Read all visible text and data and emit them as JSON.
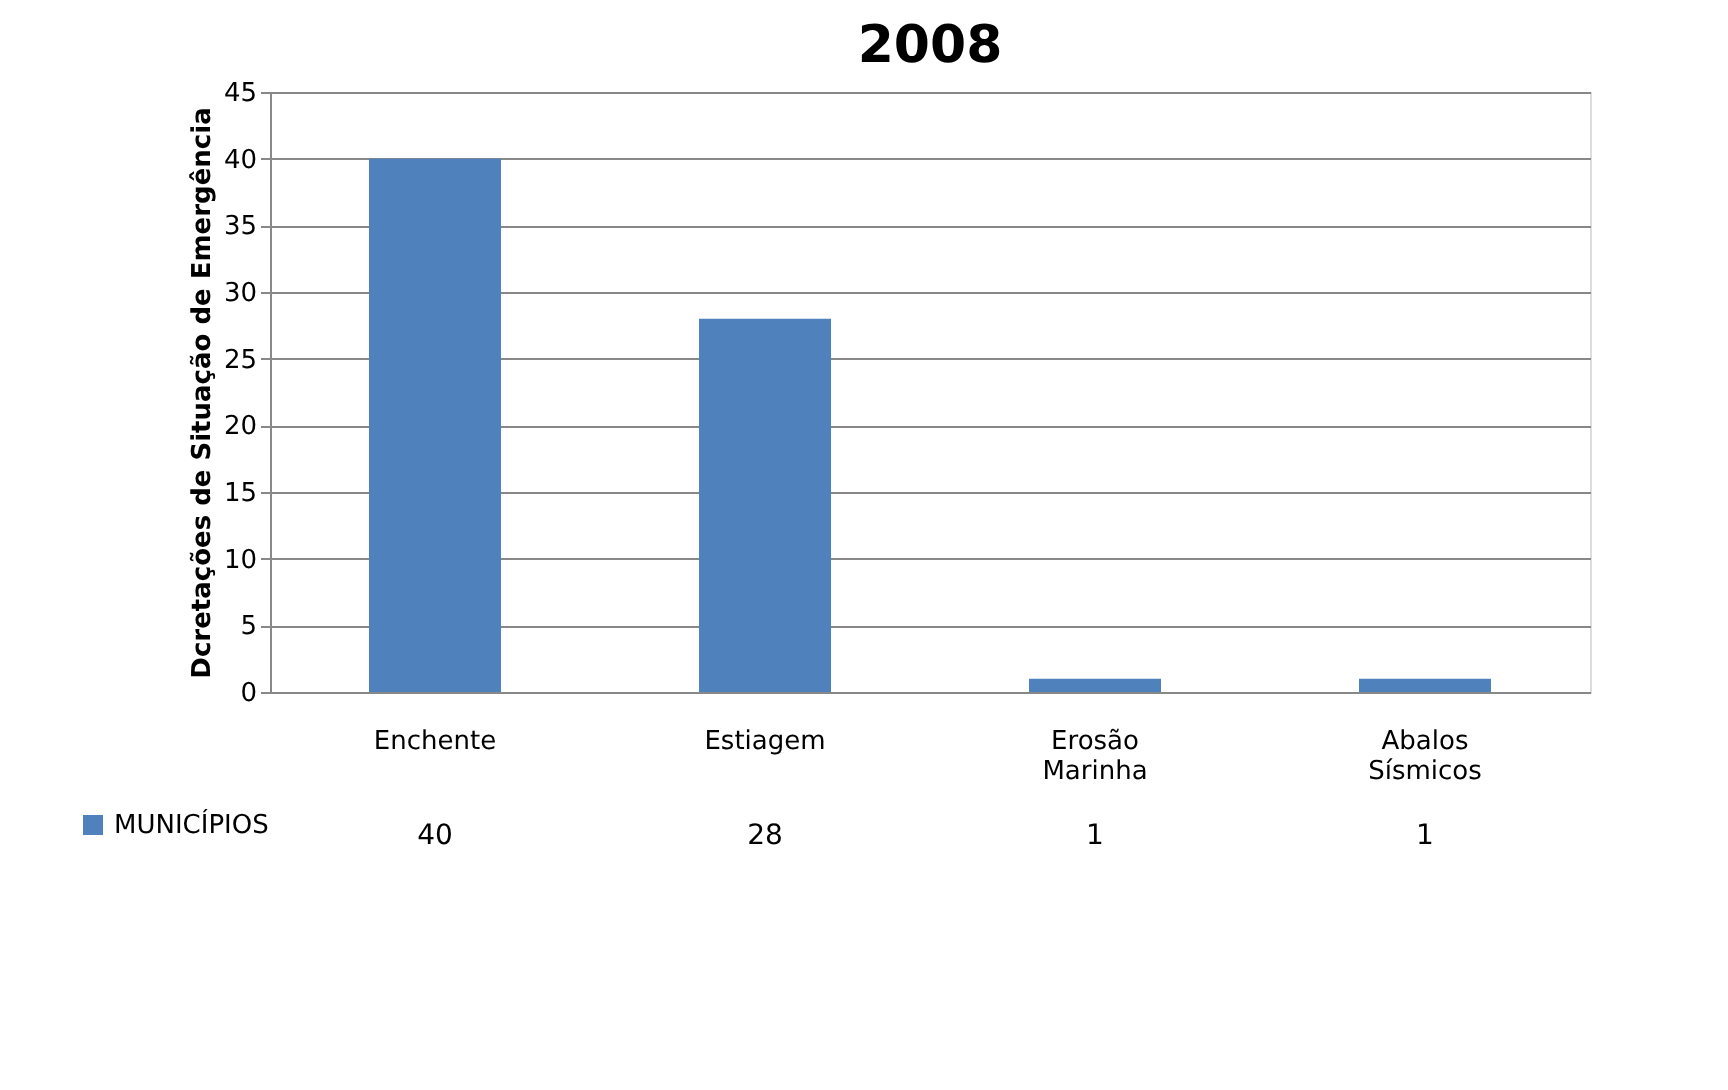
{
  "chart_data": {
    "type": "bar",
    "title": "2008",
    "ylabel": "Dcretações de Situação  de Emergência",
    "categories": [
      "Enchente",
      "Estiagem",
      "Erosão Marinha",
      "Abalos Sísmicos"
    ],
    "series": [
      {
        "name": "MUNICÍPIOS",
        "color": "#4f81bd",
        "values": [
          40,
          28,
          1,
          1
        ]
      }
    ],
    "ylim": [
      0,
      45
    ],
    "yticks": [
      0,
      5,
      10,
      15,
      20,
      25,
      30,
      35,
      40,
      45
    ],
    "grid": "y",
    "legend": "bottom left",
    "data_labels": true
  }
}
